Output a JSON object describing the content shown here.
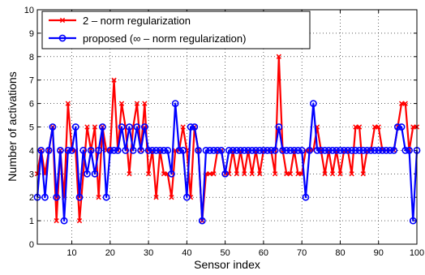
{
  "chart_data": {
    "type": "line",
    "xlabel": "Sensor index",
    "ylabel": "Number of activations",
    "xlim": [
      1,
      100
    ],
    "ylim": [
      0,
      10
    ],
    "xticks": [
      10,
      20,
      30,
      40,
      50,
      60,
      70,
      80,
      90,
      100
    ],
    "yticks": [
      0,
      1,
      2,
      3,
      4,
      5,
      6,
      7,
      8,
      9,
      10
    ],
    "grid": true,
    "legend_position": "top-left",
    "series": [
      {
        "name": "2 – norm regularization",
        "color": "#ff0000",
        "marker": "x",
        "values": [
          3,
          4,
          3,
          4,
          5,
          1,
          4,
          2,
          6,
          4,
          4,
          1,
          3,
          5,
          4,
          5,
          2,
          5,
          4,
          4,
          7,
          4,
          6,
          5,
          3,
          5,
          6,
          4,
          6,
          3,
          4,
          2,
          4,
          3,
          3,
          2,
          4,
          4,
          5,
          4,
          2,
          5,
          4,
          1,
          3,
          3,
          3,
          4,
          4,
          3,
          3,
          4,
          3,
          4,
          3,
          4,
          3,
          4,
          3,
          4,
          4,
          4,
          3,
          8,
          4,
          3,
          3,
          4,
          3,
          3,
          4,
          4,
          4,
          5,
          4,
          3,
          4,
          3,
          4,
          3,
          4,
          4,
          3,
          5,
          5,
          3,
          4,
          4,
          5,
          5,
          4,
          4,
          4,
          4,
          5,
          6,
          6,
          4,
          5,
          5
        ]
      },
      {
        "name": "proposed (∞ – norm regularization)",
        "color": "#0000ff",
        "marker": "o",
        "values": [
          2,
          4,
          2,
          4,
          5,
          2,
          4,
          1,
          4,
          4,
          5,
          2,
          4,
          3,
          4,
          3,
          4,
          5,
          2,
          4,
          4,
          4,
          5,
          4,
          5,
          4,
          5,
          4,
          5,
          4,
          4,
          4,
          4,
          4,
          4,
          3,
          6,
          4,
          4,
          2,
          5,
          5,
          4,
          1,
          4,
          4,
          4,
          4,
          4,
          3,
          4,
          4,
          4,
          4,
          4,
          4,
          4,
          4,
          4,
          4,
          4,
          4,
          4,
          5,
          4,
          4,
          4,
          4,
          4,
          4,
          2,
          4,
          6,
          4,
          4,
          4,
          4,
          4,
          4,
          4,
          4,
          4,
          4,
          4,
          4,
          4,
          4,
          4,
          4,
          4,
          4,
          4,
          4,
          4,
          5,
          5,
          4,
          4,
          1,
          4
        ]
      }
    ]
  }
}
